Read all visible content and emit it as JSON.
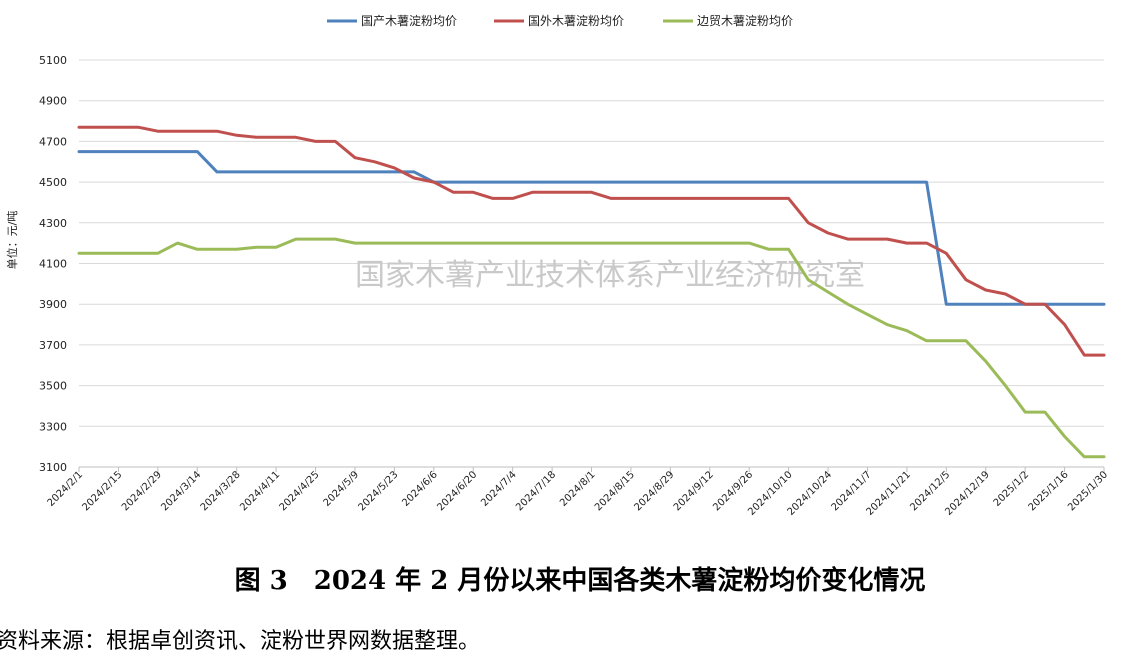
{
  "chart_data": {
    "type": "line",
    "ylabel": "单位：元/吨",
    "ylim": [
      3100,
      5100
    ],
    "yticks": [
      3100,
      3300,
      3500,
      3700,
      3900,
      4100,
      4300,
      4500,
      4700,
      4900,
      5100
    ],
    "grid": true,
    "legend_position": "top",
    "watermark": "国家木薯产业技术体系产业经济研究室",
    "x": [
      "2024/2/1",
      "2024/2/8",
      "2024/2/15",
      "2024/2/22",
      "2024/2/29",
      "2024/3/7",
      "2024/3/14",
      "2024/3/21",
      "2024/3/28",
      "2024/4/4",
      "2024/4/11",
      "2024/4/18",
      "2024/4/25",
      "2024/5/2",
      "2024/5/9",
      "2024/5/16",
      "2024/5/23",
      "2024/5/30",
      "2024/6/6",
      "2024/6/13",
      "2024/6/20",
      "2024/6/27",
      "2024/7/4",
      "2024/7/11",
      "2024/7/18",
      "2024/7/25",
      "2024/8/1",
      "2024/8/8",
      "2024/8/15",
      "2024/8/22",
      "2024/8/29",
      "2024/9/5",
      "2024/9/12",
      "2024/9/19",
      "2024/9/26",
      "2024/10/3",
      "2024/10/10",
      "2024/10/17",
      "2024/10/24",
      "2024/10/31",
      "2024/11/7",
      "2024/11/14",
      "2024/11/21",
      "2024/11/28",
      "2024/12/5",
      "2024/12/12",
      "2024/12/19",
      "2024/12/26",
      "2025/1/2",
      "2025/1/9",
      "2025/1/16",
      "2025/1/23",
      "2025/1/30"
    ],
    "xtick_labels": [
      "2024/2/1",
      "2024/2/15",
      "2024/2/29",
      "2024/3/14",
      "2024/3/28",
      "2024/4/11",
      "2024/4/25",
      "2024/5/9",
      "2024/5/23",
      "2024/6/6",
      "2024/6/20",
      "2024/7/4",
      "2024/7/18",
      "2024/8/1",
      "2024/8/15",
      "2024/8/29",
      "2024/9/12",
      "2024/9/26",
      "2024/10/10",
      "2024/10/24",
      "2024/11/7",
      "2024/11/21",
      "2024/12/5",
      "2024/12/19",
      "2025/1/2",
      "2025/1/16",
      "2025/1/30"
    ],
    "series": [
      {
        "name": "国产木薯淀粉均价",
        "color": "#4f81bd",
        "values": [
          4650,
          4650,
          4650,
          4650,
          4650,
          4650,
          4650,
          4550,
          4550,
          4550,
          4550,
          4550,
          4550,
          4550,
          4550,
          4550,
          4550,
          4550,
          4500,
          4500,
          4500,
          4500,
          4500,
          4500,
          4500,
          4500,
          4500,
          4500,
          4500,
          4500,
          4500,
          4500,
          4500,
          4500,
          4500,
          4500,
          4500,
          4500,
          4500,
          4500,
          4500,
          4500,
          4500,
          4500,
          3900,
          3900,
          3900,
          3900,
          3900,
          3900,
          3900,
          3900,
          3900
        ]
      },
      {
        "name": "国外木薯淀粉均价",
        "color": "#c0504d",
        "values": [
          4770,
          4770,
          4770,
          4770,
          4750,
          4750,
          4750,
          4750,
          4730,
          4720,
          4720,
          4720,
          4700,
          4700,
          4620,
          4600,
          4570,
          4520,
          4500,
          4450,
          4450,
          4420,
          4420,
          4450,
          4450,
          4450,
          4450,
          4420,
          4420,
          4420,
          4420,
          4420,
          4420,
          4420,
          4420,
          4420,
          4420,
          4300,
          4250,
          4220,
          4220,
          4220,
          4200,
          4200,
          4150,
          4020,
          3970,
          3950,
          3900,
          3900,
          3800,
          3650,
          3650
        ]
      },
      {
        "name": "边贸木薯淀粉均价",
        "color": "#9bbb59",
        "values": [
          4150,
          4150,
          4150,
          4150,
          4150,
          4200,
          4170,
          4170,
          4170,
          4180,
          4180,
          4220,
          4220,
          4220,
          4200,
          4200,
          4200,
          4200,
          4200,
          4200,
          4200,
          4200,
          4200,
          4200,
          4200,
          4200,
          4200,
          4200,
          4200,
          4200,
          4200,
          4200,
          4200,
          4200,
          4200,
          4170,
          4170,
          4020,
          3960,
          3900,
          3850,
          3800,
          3770,
          3720,
          3720,
          3720,
          3620,
          3500,
          3370,
          3370,
          3250,
          3150,
          3150
        ]
      }
    ]
  },
  "caption": "图 3　2024 年 2 月份以来中国各类木薯淀粉均价变化情况",
  "source": "资料来源：根据卓创资讯、淀粉世界网数据整理。"
}
